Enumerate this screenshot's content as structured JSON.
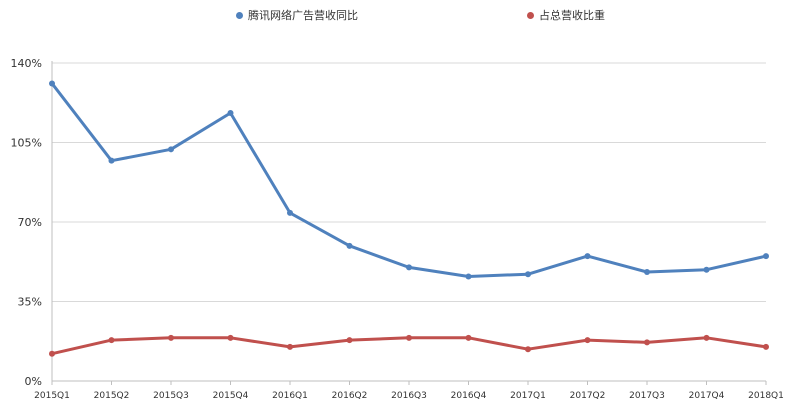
{
  "chart_data": {
    "type": "line",
    "title": "",
    "xlabel": "",
    "ylabel": "",
    "x": [
      "2015Q1",
      "2015Q2",
      "2015Q3",
      "2015Q4",
      "2016Q1",
      "2016Q2",
      "2016Q3",
      "2016Q4",
      "2017Q1",
      "2017Q2",
      "2017Q3",
      "2017Q4",
      "2018Q1"
    ],
    "ylim": [
      0,
      140
    ],
    "yticks": [
      0,
      35,
      70,
      105,
      140
    ],
    "ytick_labels": [
      "0%",
      "35%",
      "70%",
      "105%",
      "140%"
    ],
    "grid": "horizontal",
    "legend_position": "top",
    "series": [
      {
        "name": "腾讯网络广告营收同比",
        "color": "#4f81bd",
        "values": [
          131,
          97,
          102,
          118,
          74,
          59.5,
          50,
          46,
          47,
          55,
          48,
          49,
          55
        ]
      },
      {
        "name": "占总营收比重",
        "color": "#c0504d",
        "values": [
          12,
          18,
          19,
          19,
          15,
          18,
          19,
          19,
          14,
          18,
          17,
          19,
          15
        ]
      }
    ]
  }
}
